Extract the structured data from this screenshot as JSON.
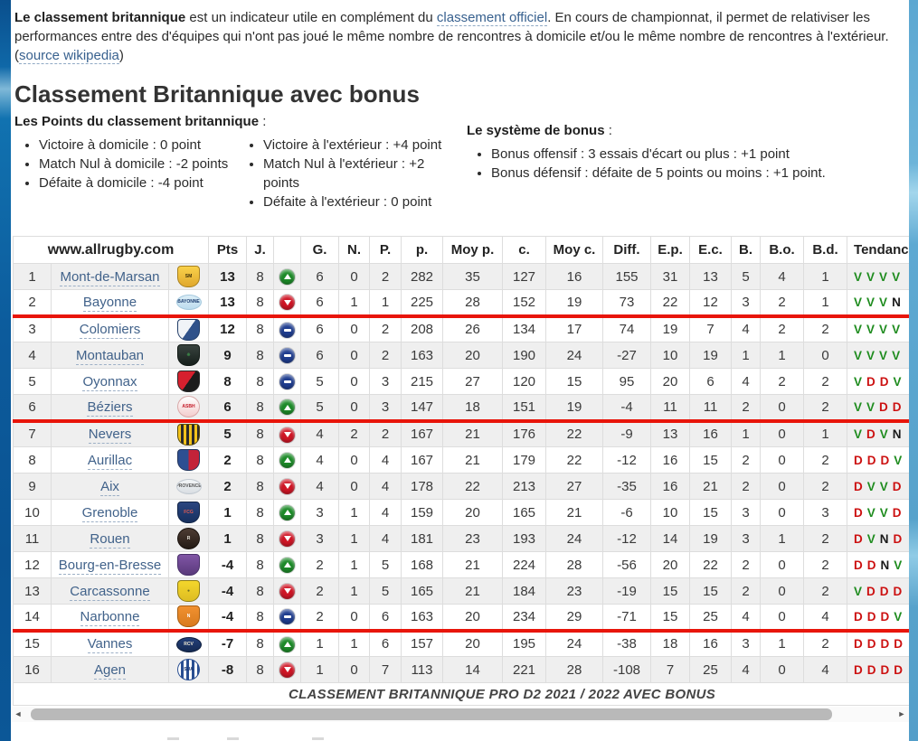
{
  "intro": {
    "lead_bold": "Le classement britannique",
    "text_after_bold": " est un indicateur utile en complément du ",
    "link1": "classement officiel",
    "text_mid": ". En cours de championnat, il permet de relativiser les performances entre des d'équipes qui n'ont pas joué le même nombre de rencontres à domicile et/ou le même nombre de rencontres à l'extérieur. (",
    "link2": "source wikipedia",
    "text_end": ")"
  },
  "heading": "Classement Britannique avec bonus",
  "points_section": {
    "title": "Les Points du classement britannique",
    "title_suffix": " :",
    "col1": [
      "Victoire à domicile : 0 point",
      "Match Nul à domicile : -2 points",
      "Défaite à domicile : -4 point"
    ],
    "col2": [
      "Victoire à l'extérieur : +4 point",
      "Match Nul à l'extérieur : +2 points",
      "Défaite à l'extérieur : 0 point"
    ]
  },
  "bonus_section": {
    "title": "Le système de bonus",
    "title_suffix": " :",
    "items": [
      "Bonus offensif : 3 essais d'écart ou plus : +1 point",
      "Bonus défensif : défaite de 5 points ou moins : +1 point."
    ]
  },
  "table": {
    "brand_header": "www.allrugby.com",
    "columns": [
      "Pts",
      "J.",
      "",
      "G.",
      "N.",
      "P.",
      "p.",
      "Moy p.",
      "c.",
      "Moy c.",
      "Diff.",
      "E.p.",
      "E.c.",
      "B.",
      "B.o.",
      "B.d.",
      "Tendance"
    ],
    "caption": "CLASSEMENT BRITANNIQUE PRO D2 2021 / 2022 AVEC BONUS",
    "trend_colors": {
      "V": "#1f8c1f",
      "D": "#cc1111",
      "N": "#1a1a1a"
    },
    "separator_color": "#e8150a",
    "rows": [
      {
        "rank": "1",
        "team": "Mont-de-Marsan",
        "shaded": true,
        "sep": false,
        "move": "up",
        "pts": "13",
        "j": "8",
        "vals": [
          "6",
          "0",
          "2",
          "282",
          "35",
          "127",
          "16",
          "155",
          "31",
          "13",
          "5",
          "4",
          "1"
        ],
        "tend": [
          "V",
          "V",
          "V",
          "V"
        ],
        "logo": {
          "shape": "shield",
          "pattern": "soft",
          "c1": "#f9d14a",
          "c2": "#e0a82e",
          "border": "#a8811f",
          "label": "SM",
          "labelColor": "#3a2d05"
        }
      },
      {
        "rank": "2",
        "team": "Bayonne",
        "shaded": false,
        "sep": true,
        "move": "down",
        "pts": "13",
        "j": "8",
        "vals": [
          "6",
          "1",
          "1",
          "225",
          "28",
          "152",
          "19",
          "73",
          "22",
          "12",
          "3",
          "2",
          "1"
        ],
        "tend": [
          "V",
          "V",
          "V",
          "N"
        ],
        "logo": {
          "shape": "oval",
          "pattern": "soft",
          "c1": "#dceef7",
          "c2": "#bcdcee",
          "border": "#a5c9de",
          "label": "BAYONNE",
          "labelColor": "#1c3c70"
        }
      },
      {
        "rank": "3",
        "team": "Colomiers",
        "shaded": false,
        "sep": false,
        "move": "same",
        "pts": "12",
        "j": "8",
        "vals": [
          "6",
          "0",
          "2",
          "208",
          "26",
          "134",
          "17",
          "74",
          "19",
          "7",
          "4",
          "2",
          "2"
        ],
        "tend": [
          "V",
          "V",
          "V",
          "V"
        ],
        "logo": {
          "shape": "shield",
          "pattern": "diag",
          "c1": "#f0f3f7",
          "c2": "#30528a",
          "border": "#243f69",
          "label": "",
          "labelColor": "#243f69"
        }
      },
      {
        "rank": "4",
        "team": "Montauban",
        "shaded": true,
        "sep": false,
        "move": "same",
        "pts": "9",
        "j": "8",
        "vals": [
          "6",
          "0",
          "2",
          "163",
          "20",
          "190",
          "24",
          "-27",
          "10",
          "19",
          "1",
          "1",
          "0"
        ],
        "tend": [
          "V",
          "V",
          "V",
          "V"
        ],
        "logo": {
          "shape": "shield",
          "pattern": "soft",
          "c1": "#39433f",
          "c2": "#161f1b",
          "border": "#101814",
          "label": "❋",
          "labelColor": "#42a050"
        }
      },
      {
        "rank": "5",
        "team": "Oyonnax",
        "shaded": false,
        "sep": false,
        "move": "same",
        "pts": "8",
        "j": "8",
        "vals": [
          "5",
          "0",
          "3",
          "215",
          "27",
          "120",
          "15",
          "95",
          "20",
          "6",
          "4",
          "2",
          "2"
        ],
        "tend": [
          "V",
          "D",
          "D",
          "V"
        ],
        "logo": {
          "shape": "shield",
          "pattern": "diag",
          "c1": "#d6202e",
          "c2": "#1c1c1c",
          "border": "#2a2a2a",
          "label": "",
          "labelColor": "#fff"
        }
      },
      {
        "rank": "6",
        "team": "Béziers",
        "shaded": true,
        "sep": true,
        "move": "up",
        "pts": "6",
        "j": "8",
        "vals": [
          "5",
          "0",
          "3",
          "147",
          "18",
          "151",
          "19",
          "-4",
          "11",
          "11",
          "2",
          "0",
          "2"
        ],
        "tend": [
          "V",
          "V",
          "D",
          "D"
        ],
        "logo": {
          "shape": "circle",
          "pattern": "soft",
          "c1": "#ffffff",
          "c2": "#f3cdcd",
          "border": "#d8a9a9",
          "label": "ASBH",
          "labelColor": "#c41826"
        }
      },
      {
        "rank": "7",
        "team": "Nevers",
        "shaded": true,
        "sep": false,
        "move": "down",
        "pts": "5",
        "j": "8",
        "vals": [
          "4",
          "2",
          "2",
          "167",
          "21",
          "176",
          "22",
          "-9",
          "13",
          "16",
          "1",
          "0",
          "1"
        ],
        "tend": [
          "V",
          "D",
          "V",
          "N"
        ],
        "logo": {
          "shape": "shield",
          "pattern": "stripes",
          "c1": "#f2c21a",
          "c2": "#2b2b2b",
          "border": "#5a4a08",
          "label": "",
          "labelColor": "#fff"
        }
      },
      {
        "rank": "8",
        "team": "Aurillac",
        "shaded": false,
        "sep": false,
        "move": "up",
        "pts": "2",
        "j": "8",
        "vals": [
          "4",
          "0",
          "4",
          "167",
          "21",
          "179",
          "22",
          "-12",
          "16",
          "15",
          "2",
          "0",
          "2"
        ],
        "tend": [
          "D",
          "D",
          "D",
          "V"
        ],
        "logo": {
          "shape": "shield",
          "pattern": "vert",
          "c1": "#2d4f92",
          "c2": "#c32339",
          "border": "#23355c",
          "label": "",
          "labelColor": "#fff"
        }
      },
      {
        "rank": "9",
        "team": "Aix",
        "shaded": true,
        "sep": false,
        "move": "down",
        "pts": "2",
        "j": "8",
        "vals": [
          "4",
          "0",
          "4",
          "178",
          "22",
          "213",
          "27",
          "-35",
          "16",
          "21",
          "2",
          "0",
          "2"
        ],
        "tend": [
          "D",
          "V",
          "V",
          "D"
        ],
        "logo": {
          "shape": "oval",
          "pattern": "soft",
          "c1": "#f4f6f8",
          "c2": "#d9dee3",
          "border": "#c2c9d1",
          "label": "PROVENCE",
          "labelColor": "#555555"
        }
      },
      {
        "rank": "10",
        "team": "Grenoble",
        "shaded": false,
        "sep": false,
        "move": "up",
        "pts": "1",
        "j": "8",
        "vals": [
          "3",
          "1",
          "4",
          "159",
          "20",
          "165",
          "21",
          "-6",
          "10",
          "15",
          "3",
          "0",
          "3"
        ],
        "tend": [
          "D",
          "V",
          "V",
          "D"
        ],
        "logo": {
          "shape": "shield",
          "pattern": "soft",
          "c1": "#2a4680",
          "c2": "#17305e",
          "border": "#122547",
          "label": "FCG",
          "labelColor": "#e05a50"
        }
      },
      {
        "rank": "11",
        "team": "Rouen",
        "shaded": true,
        "sep": false,
        "move": "down",
        "pts": "1",
        "j": "8",
        "vals": [
          "3",
          "1",
          "4",
          "181",
          "23",
          "193",
          "24",
          "-12",
          "14",
          "19",
          "3",
          "1",
          "2"
        ],
        "tend": [
          "D",
          "V",
          "N",
          "D"
        ],
        "logo": {
          "shape": "circle",
          "pattern": "soft",
          "c1": "#4d3c33",
          "c2": "#241b15",
          "border": "#1a130e",
          "label": "R",
          "labelColor": "#e8e4da"
        }
      },
      {
        "rank": "12",
        "team": "Bourg-en-Bresse",
        "shaded": false,
        "sep": false,
        "move": "up",
        "pts": "-4",
        "j": "8",
        "vals": [
          "2",
          "1",
          "5",
          "168",
          "21",
          "224",
          "28",
          "-56",
          "20",
          "22",
          "2",
          "0",
          "2"
        ],
        "tend": [
          "D",
          "D",
          "N",
          "V"
        ],
        "logo": {
          "shape": "shield",
          "pattern": "soft",
          "c1": "#8055a5",
          "c2": "#5a3a7c",
          "border": "#49306a",
          "label": "",
          "labelColor": "#fff"
        }
      },
      {
        "rank": "13",
        "team": "Carcassonne",
        "shaded": true,
        "sep": false,
        "move": "down",
        "pts": "-4",
        "j": "8",
        "vals": [
          "2",
          "1",
          "5",
          "165",
          "21",
          "184",
          "23",
          "-19",
          "15",
          "15",
          "2",
          "0",
          "2"
        ],
        "tend": [
          "V",
          "D",
          "D",
          "D"
        ],
        "logo": {
          "shape": "shield",
          "pattern": "soft",
          "c1": "#f4d62c",
          "c2": "#ddbd22",
          "border": "#8f7d18",
          "label": "●",
          "labelColor": "#6d6d20"
        }
      },
      {
        "rank": "14",
        "team": "Narbonne",
        "shaded": false,
        "sep": true,
        "move": "same",
        "pts": "-4",
        "j": "8",
        "vals": [
          "2",
          "0",
          "6",
          "163",
          "20",
          "234",
          "29",
          "-71",
          "15",
          "25",
          "4",
          "0",
          "4"
        ],
        "tend": [
          "D",
          "D",
          "D",
          "V"
        ],
        "logo": {
          "shape": "shield",
          "pattern": "soft",
          "c1": "#f19130",
          "c2": "#d87a1e",
          "border": "#a55d12",
          "label": "N",
          "labelColor": "#ffffff"
        }
      },
      {
        "rank": "15",
        "team": "Vannes",
        "shaded": false,
        "sep": false,
        "move": "up",
        "pts": "-7",
        "j": "8",
        "vals": [
          "1",
          "1",
          "6",
          "157",
          "20",
          "195",
          "24",
          "-38",
          "18",
          "16",
          "3",
          "1",
          "2"
        ],
        "tend": [
          "D",
          "D",
          "D",
          "D"
        ],
        "logo": {
          "shape": "oval",
          "pattern": "soft",
          "c1": "#23407a",
          "c2": "#152a52",
          "border": "#10203f",
          "label": "RCV",
          "labelColor": "#f0e9d2"
        }
      },
      {
        "rank": "16",
        "team": "Agen",
        "shaded": true,
        "sep": false,
        "move": "down",
        "pts": "-8",
        "j": "8",
        "vals": [
          "1",
          "0",
          "7",
          "113",
          "14",
          "221",
          "28",
          "-108",
          "7",
          "25",
          "4",
          "0",
          "4"
        ],
        "tend": [
          "D",
          "D",
          "D",
          "D"
        ],
        "logo": {
          "shape": "circle",
          "pattern": "stripes",
          "c1": "#ffffff",
          "c2": "#2a4f92",
          "border": "#2a4f92",
          "label": "SUA",
          "labelColor": "#13306b"
        }
      }
    ]
  },
  "scrollbar": {
    "left_arrow": "◄",
    "right_arrow": "►"
  }
}
